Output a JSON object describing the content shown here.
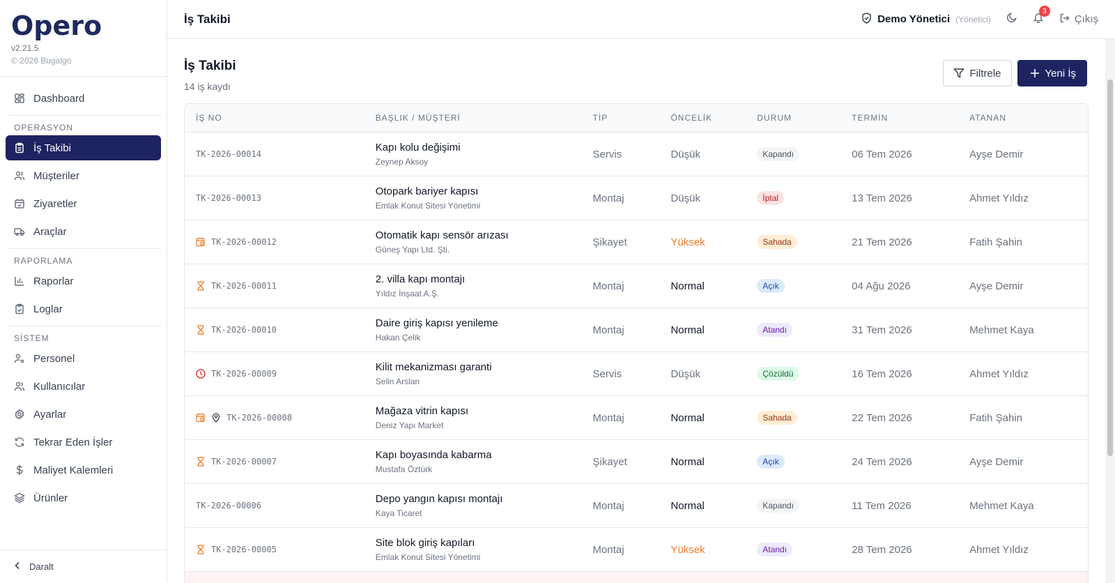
{
  "app": {
    "logo": "Opero",
    "version": "v2.21.5",
    "copyright": "© 2026 Bugalgo"
  },
  "sidebar": {
    "dashboard": "Dashboard",
    "sections": {
      "operasyon": "OPERASYON",
      "raporlama": "RAPORLAMA",
      "sistem": "SİSTEM"
    },
    "items": {
      "is_takibi": "İş Takibi",
      "musteriler": "Müşteriler",
      "ziyaretler": "Ziyaretler",
      "araclar": "Araçlar",
      "raporlar": "Raporlar",
      "loglar": "Loglar",
      "personel": "Personel",
      "kullanicilar": "Kullanıcılar",
      "ayarlar": "Ayarlar",
      "tekrar_eden": "Tekrar Eden İşler",
      "maliyet": "Maliyet Kalemleri",
      "urunler": "Ürünler"
    },
    "collapse": "Daralt"
  },
  "header": {
    "title": "İş Takibi",
    "user_name": "Demo Yönetici",
    "user_role": "(Yönetici)",
    "notification_count": "3",
    "logout": "Çıkış"
  },
  "page": {
    "title": "İş Takibi",
    "subtitle": "14 iş kaydı",
    "filter_button": "Filtrele",
    "new_button": "Yeni İş"
  },
  "table": {
    "headers": {
      "no": "İŞ NO",
      "title": "BAŞLIK / MÜŞTERİ",
      "type": "TİP",
      "priority": "ÖNCELİK",
      "status": "DURUM",
      "due": "TERMİN",
      "assignee": "ATANAN"
    },
    "rows": [
      {
        "no": "TK-2026-00014",
        "title": "Kapı kolu değişimi",
        "customer": "Zeynep Aksoy",
        "type": "Servis",
        "priority": "Düşük",
        "status": "Kapandı",
        "due": "06 Tem 2026",
        "assignee": "Ayşe Demir"
      },
      {
        "no": "TK-2026-00013",
        "title": "Otopark bariyer kapısı",
        "customer": "Emlak Konut Sitesi Yönetimi",
        "type": "Montaj",
        "priority": "Düşük",
        "status": "İptal",
        "due": "13 Tem 2026",
        "assignee": "Ahmet Yıldız"
      },
      {
        "no": "TK-2026-00012",
        "title": "Otomatik kapı sensör arızası",
        "customer": "Güneş Yapı Ltd. Şti.",
        "type": "Şikayet",
        "priority": "Yüksek",
        "status": "Sahada",
        "due": "21 Tem 2026",
        "assignee": "Fatih Şahin"
      },
      {
        "no": "TK-2026-00011",
        "title": "2. villa kapı montajı",
        "customer": "Yıldız İnşaat A.Ş.",
        "type": "Montaj",
        "priority": "Normal",
        "status": "Açık",
        "due": "04 Ağu 2026",
        "assignee": "Ayşe Demir"
      },
      {
        "no": "TK-2026-00010",
        "title": "Daire giriş kapısı yenileme",
        "customer": "Hakan Çelik",
        "type": "Montaj",
        "priority": "Normal",
        "status": "Atandı",
        "due": "31 Tem 2026",
        "assignee": "Mehmet Kaya"
      },
      {
        "no": "TK-2026-00009",
        "title": "Kilit mekanizması garanti",
        "customer": "Selin Arslan",
        "type": "Servis",
        "priority": "Düşük",
        "status": "Çözüldü",
        "due": "16 Tem 2026",
        "assignee": "Ahmet Yıldız"
      },
      {
        "no": "TK-2026-00008",
        "title": "Mağaza vitrin kapısı",
        "customer": "Deniz Yapı Market",
        "type": "Montaj",
        "priority": "Normal",
        "status": "Sahada",
        "due": "22 Tem 2026",
        "assignee": "Fatih Şahin"
      },
      {
        "no": "TK-2026-00007",
        "title": "Kapı boyasında kabarma",
        "customer": "Mustafa Öztürk",
        "type": "Şikayet",
        "priority": "Normal",
        "status": "Açık",
        "due": "24 Tem 2026",
        "assignee": "Ayşe Demir"
      },
      {
        "no": "TK-2026-00006",
        "title": "Depo yangın kapısı montajı",
        "customer": "Kaya Ticaret",
        "type": "Montaj",
        "priority": "Normal",
        "status": "Kapandı",
        "due": "11 Tem 2026",
        "assignee": "Mehmet Kaya"
      },
      {
        "no": "TK-2026-00005",
        "title": "Site blok giriş kapıları",
        "customer": "Emlak Konut Sitesi Yönetimi",
        "type": "Montaj",
        "priority": "Yüksek",
        "status": "Atandı",
        "due": "28 Tem 2026",
        "assignee": "Ahmet Yıldız"
      }
    ]
  },
  "colors": {
    "primary": "#1e2361",
    "high_priority": "#ea7c2c",
    "row_icon": "#ea7c2c",
    "overdue_icon": "#dc2626"
  }
}
